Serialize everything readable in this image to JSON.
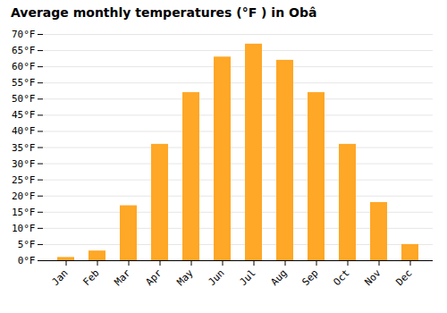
{
  "chart_data": {
    "type": "bar",
    "title": "Average monthly temperatures (°F ) in Obâ",
    "categories": [
      "Jan",
      "Feb",
      "Mar",
      "Apr",
      "May",
      "Jun",
      "Jul",
      "Aug",
      "Sep",
      "Oct",
      "Nov",
      "Dec"
    ],
    "values": [
      1,
      3,
      17,
      36,
      52,
      63,
      67,
      62,
      52,
      36,
      18,
      5
    ],
    "color": "#FFA726",
    "ylim": [
      0,
      70
    ],
    "yticks": [
      {
        "value": 0,
        "label": "0°F"
      },
      {
        "value": 5,
        "label": "5°F"
      },
      {
        "value": 10,
        "label": "10°F"
      },
      {
        "value": 15,
        "label": "15°F"
      },
      {
        "value": 20,
        "label": "20°F"
      },
      {
        "value": 25,
        "label": "25°F"
      },
      {
        "value": 30,
        "label": "30°F"
      },
      {
        "value": 35,
        "label": "35°F"
      },
      {
        "value": 40,
        "label": "40°F"
      },
      {
        "value": 45,
        "label": "45°F"
      },
      {
        "value": 50,
        "label": "50°F"
      },
      {
        "value": 55,
        "label": "55°F"
      },
      {
        "value": 60,
        "label": "60°F"
      },
      {
        "value": 65,
        "label": "65°F"
      },
      {
        "value": 70,
        "label": "70°F"
      }
    ],
    "grid": true
  }
}
